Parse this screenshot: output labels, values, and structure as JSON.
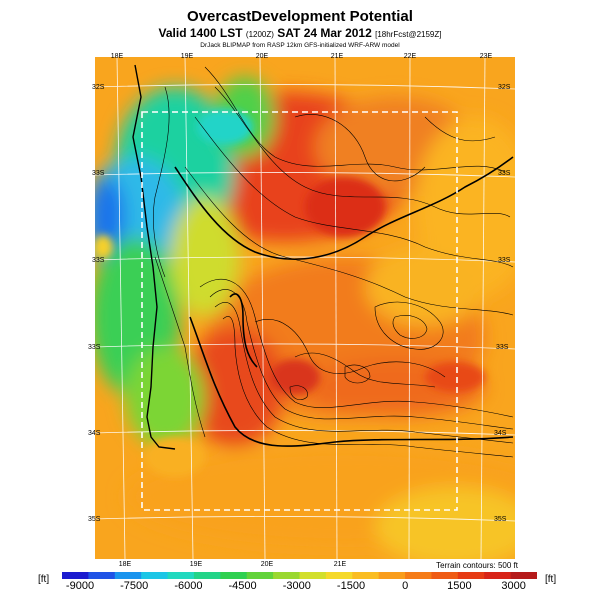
{
  "header": {
    "title": "OvercastDevelopment Potential",
    "subtitle_main": "Valid 1400 LST",
    "subtitle_local": "(1200Z)",
    "subtitle_date": "SAT 24 Mar 2012",
    "subtitle_fcst": "[18hrFcst@2159Z]",
    "credit": "DrJack BLIPMAP from RASP 12km GFS-initialized WRF-ARW model"
  },
  "map": {
    "lon_labels_top": [
      "18E",
      "19E",
      "20E",
      "21E",
      "22E",
      "23E"
    ],
    "lon_labels_bottom": [
      "18E",
      "19E",
      "20E",
      "21E"
    ],
    "lat_labels_left": [
      "32S",
      "33S",
      "33S",
      "33S",
      "34S",
      "35S"
    ],
    "lat_labels_right": [
      "32S",
      "33S",
      "33S",
      "33S",
      "34S",
      "35S"
    ],
    "terrain_note": "Terrain contours: 500 ft"
  },
  "colorbar": {
    "unit_left": "[ft]",
    "unit_right": "[ft]",
    "ticks": [
      "-9000",
      "-7500",
      "-6000",
      "-4500",
      "-3000",
      "-1500",
      "0",
      "1500",
      "3000"
    ],
    "colors": [
      "#1b1bcf",
      "#1f53e6",
      "#1a94ee",
      "#1cc6e6",
      "#21d9bf",
      "#22d488",
      "#2fd050",
      "#62d33a",
      "#9ad830",
      "#d2df2c",
      "#f5d92a",
      "#fabd22",
      "#f99d1c",
      "#f57c18",
      "#ef5c15",
      "#e63b14",
      "#d82418",
      "#b51a1a"
    ]
  }
}
